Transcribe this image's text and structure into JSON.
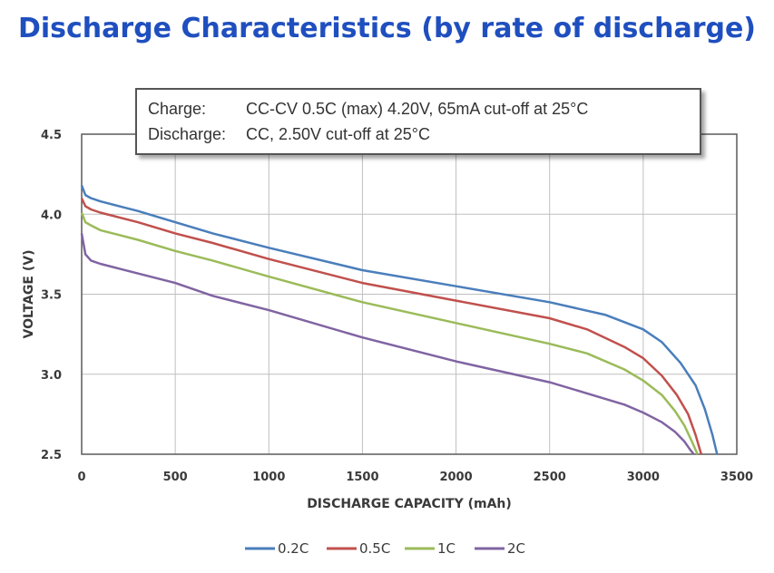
{
  "title": "Discharge Characteristics (by rate of discharge)",
  "conditions": {
    "charge_label": "Charge:",
    "charge_text": "CC-CV 0.5C (max) 4.20V, 65mA cut-off at 25°C",
    "discharge_label": "Discharge:",
    "discharge_text": "CC, 2.50V cut-off at 25°C"
  },
  "chart_data": {
    "type": "line",
    "xlabel": "DISCHARGE CAPACITY (mAh)",
    "ylabel": "VOLTAGE (V)",
    "xlim": [
      0,
      3500
    ],
    "ylim": [
      2.5,
      4.5
    ],
    "xticks": [
      "0",
      "500",
      "1000",
      "1500",
      "2000",
      "2500",
      "3000",
      "3500"
    ],
    "yticks": [
      "2.5",
      "3.0",
      "3.5",
      "4.0",
      "4.5"
    ],
    "grid": true,
    "legend_position": "bottom",
    "series": [
      {
        "name": "0.2C",
        "color": "#4a7ebb",
        "points": [
          [
            0,
            4.18
          ],
          [
            20,
            4.12
          ],
          [
            50,
            4.1
          ],
          [
            100,
            4.08
          ],
          [
            200,
            4.05
          ],
          [
            300,
            4.02
          ],
          [
            500,
            3.95
          ],
          [
            700,
            3.88
          ],
          [
            1000,
            3.79
          ],
          [
            1500,
            3.65
          ],
          [
            2000,
            3.55
          ],
          [
            2500,
            3.45
          ],
          [
            2800,
            3.37
          ],
          [
            3000,
            3.28
          ],
          [
            3100,
            3.2
          ],
          [
            3200,
            3.07
          ],
          [
            3280,
            2.93
          ],
          [
            3330,
            2.78
          ],
          [
            3370,
            2.62
          ],
          [
            3395,
            2.5
          ]
        ]
      },
      {
        "name": "0.5C",
        "color": "#c0504d",
        "points": [
          [
            0,
            4.1
          ],
          [
            20,
            4.05
          ],
          [
            50,
            4.03
          ],
          [
            100,
            4.01
          ],
          [
            200,
            3.98
          ],
          [
            300,
            3.95
          ],
          [
            500,
            3.88
          ],
          [
            700,
            3.82
          ],
          [
            1000,
            3.72
          ],
          [
            1500,
            3.57
          ],
          [
            2000,
            3.46
          ],
          [
            2500,
            3.35
          ],
          [
            2700,
            3.28
          ],
          [
            2900,
            3.17
          ],
          [
            3000,
            3.1
          ],
          [
            3100,
            2.99
          ],
          [
            3180,
            2.87
          ],
          [
            3240,
            2.75
          ],
          [
            3280,
            2.62
          ],
          [
            3310,
            2.5
          ]
        ]
      },
      {
        "name": "1C",
        "color": "#9bbb59",
        "points": [
          [
            0,
            4.01
          ],
          [
            20,
            3.95
          ],
          [
            50,
            3.93
          ],
          [
            100,
            3.9
          ],
          [
            200,
            3.87
          ],
          [
            300,
            3.84
          ],
          [
            500,
            3.77
          ],
          [
            700,
            3.71
          ],
          [
            1000,
            3.61
          ],
          [
            1500,
            3.45
          ],
          [
            2000,
            3.32
          ],
          [
            2500,
            3.19
          ],
          [
            2700,
            3.13
          ],
          [
            2900,
            3.03
          ],
          [
            3000,
            2.96
          ],
          [
            3100,
            2.87
          ],
          [
            3170,
            2.77
          ],
          [
            3220,
            2.68
          ],
          [
            3260,
            2.58
          ],
          [
            3290,
            2.5
          ]
        ]
      },
      {
        "name": "2C",
        "color": "#8064a2",
        "points": [
          [
            0,
            3.88
          ],
          [
            20,
            3.75
          ],
          [
            50,
            3.71
          ],
          [
            100,
            3.69
          ],
          [
            200,
            3.66
          ],
          [
            300,
            3.63
          ],
          [
            500,
            3.57
          ],
          [
            700,
            3.49
          ],
          [
            1000,
            3.4
          ],
          [
            1500,
            3.23
          ],
          [
            2000,
            3.08
          ],
          [
            2500,
            2.95
          ],
          [
            2700,
            2.88
          ],
          [
            2900,
            2.81
          ],
          [
            3000,
            2.76
          ],
          [
            3100,
            2.7
          ],
          [
            3170,
            2.64
          ],
          [
            3220,
            2.58
          ],
          [
            3250,
            2.53
          ],
          [
            3270,
            2.5
          ]
        ]
      }
    ]
  }
}
